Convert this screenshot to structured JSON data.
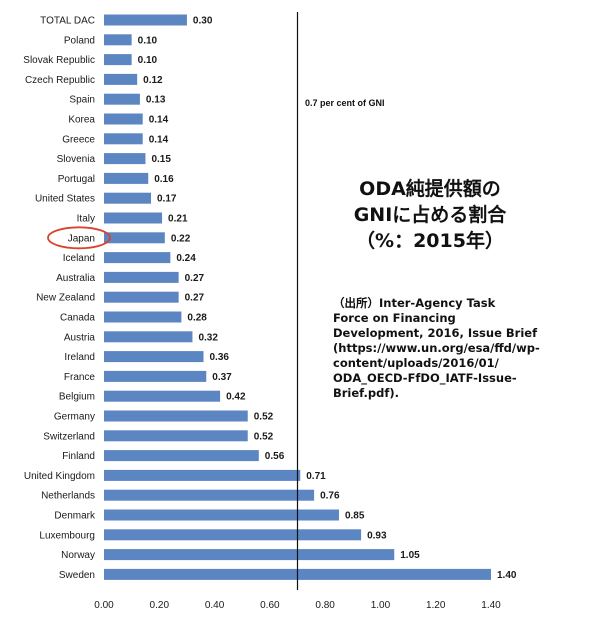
{
  "chart_data": {
    "type": "bar",
    "orientation": "horizontal",
    "categories": [
      "TOTAL DAC",
      "Poland",
      "Slovak Republic",
      "Czech Republic",
      "Spain",
      "Korea",
      "Greece",
      "Slovenia",
      "Portugal",
      "United States",
      "Italy",
      "Japan",
      "Iceland",
      "Australia",
      "New Zealand",
      "Canada",
      "Austria",
      "Ireland",
      "France",
      "Belgium",
      "Germany",
      "Switzerland",
      "Finland",
      "United Kingdom",
      "Netherlands",
      "Denmark",
      "Luxembourg",
      "Norway",
      "Sweden"
    ],
    "values": [
      0.3,
      0.1,
      0.1,
      0.12,
      0.13,
      0.14,
      0.14,
      0.15,
      0.16,
      0.17,
      0.21,
      0.22,
      0.24,
      0.27,
      0.27,
      0.28,
      0.32,
      0.36,
      0.37,
      0.42,
      0.52,
      0.52,
      0.56,
      0.71,
      0.76,
      0.85,
      0.93,
      1.05,
      1.4
    ],
    "value_labels": [
      "0.30",
      "0.10",
      "0.10",
      "0.12",
      "0.13",
      "0.14",
      "0.14",
      "0.15",
      "0.16",
      "0.17",
      "0.21",
      "0.22",
      "0.24",
      "0.27",
      "0.27",
      "0.28",
      "0.32",
      "0.36",
      "0.37",
      "0.42",
      "0.52",
      "0.52",
      "0.56",
      "0.71",
      "0.76",
      "0.85",
      "0.93",
      "1.05",
      "1.40"
    ],
    "xlim": [
      0,
      1.4
    ],
    "xticks": [
      "0.00",
      "0.20",
      "0.40",
      "0.60",
      "0.80",
      "1.00",
      "1.20",
      "1.40"
    ],
    "bar_color": "#5b86c2",
    "reference_line": {
      "value": 0.7,
      "label": "0.7 per cent of GNI"
    },
    "highlighted_category": "Japan",
    "highlight_color": "#d9432f",
    "title_lines": [
      "ODA純提供額の",
      "GNIに占める割合",
      "（%：2015年）"
    ],
    "source_lines": [
      "（出所）Inter-Agency Task",
      "Force on Financing",
      "Development, 2016, Issue Brief",
      "(https://www.un.org/esa/ffd/wp-",
      "content/uploads/2016/01/",
      "ODA_OECD-FfDO_IATF-Issue-",
      "Brief.pdf)."
    ],
    "grid": false,
    "legend": "none"
  }
}
